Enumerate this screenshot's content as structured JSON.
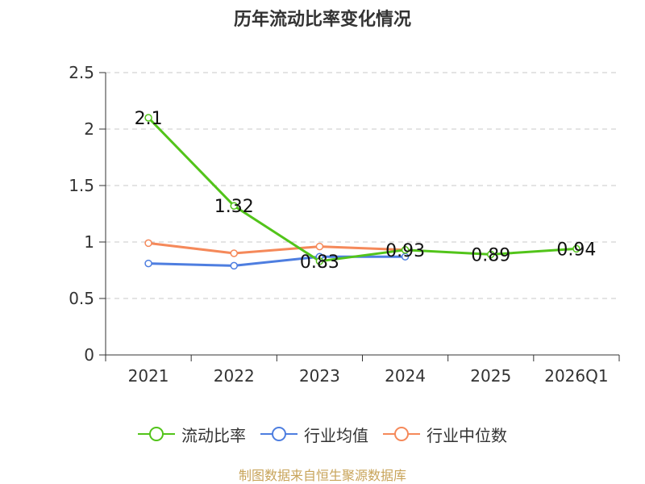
{
  "title": "历年流动比率变化情况",
  "source_note": "制图数据来自恒生聚源数据库",
  "colors": {
    "series_ratio": "#52c41a",
    "series_avg": "#4e7ee0",
    "series_median": "#f5895a",
    "grid": "#c8c8c8",
    "axis": "#333333"
  },
  "chart_data": {
    "type": "line",
    "title": "历年流动比率变化情况",
    "categories": [
      "2021",
      "2022",
      "2023",
      "2024",
      "2025",
      "2026Q1"
    ],
    "ylim": [
      0,
      2.5
    ],
    "yticks": [
      "0",
      "0.5",
      "1",
      "1.5",
      "2",
      "2.5"
    ],
    "grid": true,
    "legend_position": "bottom-center",
    "series": [
      {
        "name": "流动比率",
        "values": [
          2.1,
          1.32,
          0.83,
          0.93,
          0.89,
          0.94
        ],
        "labels": [
          "2.1",
          "1.32",
          "0.83",
          "0.93",
          "0.89",
          "0.94"
        ]
      },
      {
        "name": "行业均值",
        "values": [
          0.81,
          0.79,
          0.87,
          0.87,
          null,
          null
        ]
      },
      {
        "name": "行业中位数",
        "values": [
          0.99,
          0.9,
          0.96,
          0.93,
          null,
          null
        ]
      }
    ]
  }
}
